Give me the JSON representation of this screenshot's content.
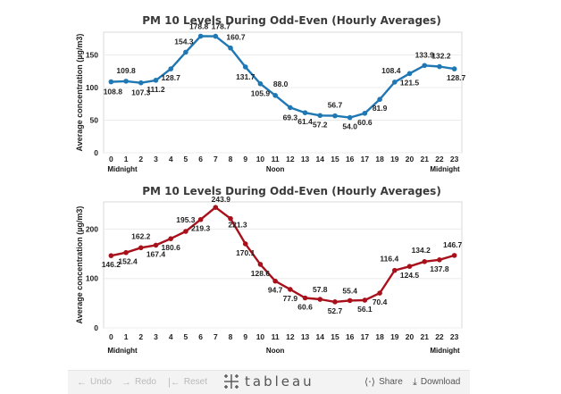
{
  "chart_data": [
    {
      "type": "line",
      "title": "PM 10 Levels During Odd-Even (Hourly Averages)",
      "ylabel": "Average concentration (µg/m3)",
      "x": [
        0,
        1,
        2,
        3,
        4,
        5,
        6,
        7,
        8,
        9,
        10,
        11,
        12,
        13,
        14,
        15,
        16,
        17,
        18,
        19,
        20,
        21,
        22,
        23
      ],
      "x_sublabels": {
        "0": "Midnight",
        "11": "Noon",
        "23": "Midnight"
      },
      "series": [
        {
          "values": [
            108.8,
            109.8,
            107.3,
            111.2,
            128.7,
            154.3,
            178.8,
            178.7,
            160.7,
            131.7,
            105.9,
            88.0,
            69.3,
            61.4,
            57.2,
            56.7,
            54.0,
            60.6,
            81.9,
            108.4,
            121.5,
            133.9,
            132.2,
            128.7
          ],
          "labels": [
            "108.8",
            "109.8",
            "107.3",
            "111.2",
            "128.7",
            "154.3",
            "178.8",
            "178.7",
            "160.7",
            "131.7",
            "105.9",
            "88.0",
            "69.3",
            "61.4",
            "57.2",
            "56.7",
            "54.0",
            "60.6",
            "81.9",
            "108.4",
            "121.5",
            "133.9",
            "132.2",
            "128.7"
          ],
          "color": "#1f77b4"
        }
      ],
      "yticks": [
        0,
        50,
        100,
        150
      ],
      "ylim": [
        0,
        185
      ],
      "grid": true
    },
    {
      "type": "line",
      "title": "PM 10 Levels During Odd-Even (Hourly Averages)",
      "ylabel": "Average concentration (µg/m3)",
      "x": [
        0,
        1,
        2,
        3,
        4,
        5,
        6,
        7,
        8,
        9,
        10,
        11,
        12,
        13,
        14,
        15,
        16,
        17,
        18,
        19,
        20,
        21,
        22,
        23
      ],
      "x_sublabels": {
        "0": "Midnight",
        "11": "Noon",
        "23": "Midnight"
      },
      "series": [
        {
          "values": [
            146.2,
            152.4,
            162.2,
            167.4,
            180.6,
            195.3,
            219.3,
            243.9,
            221.3,
            170.1,
            128.6,
            94.7,
            77.9,
            60.6,
            57.8,
            52.7,
            55.4,
            56.1,
            70.4,
            116.4,
            124.5,
            134.2,
            137.8,
            146.7
          ],
          "labels": [
            "146.2",
            "152.4",
            "162.2",
            "167.4",
            "180.6",
            "195.3",
            "219.3",
            "243.9",
            "221.3",
            "170.1",
            "128.6",
            "94.7",
            "77.9",
            "60.6",
            "57.8",
            "52.7",
            "55.4",
            "56.1",
            "70.4",
            "116.4",
            "124.5",
            "134.2",
            "137.8",
            "146.7"
          ],
          "color": "#a8111b"
        }
      ],
      "yticks": [
        0,
        100,
        200
      ],
      "ylim": [
        0,
        255
      ],
      "grid": true
    }
  ],
  "toolbar": {
    "undo": "Undo",
    "redo": "Redo",
    "reset": "Reset",
    "logo": "tableau",
    "share": "Share",
    "download": "Download"
  }
}
